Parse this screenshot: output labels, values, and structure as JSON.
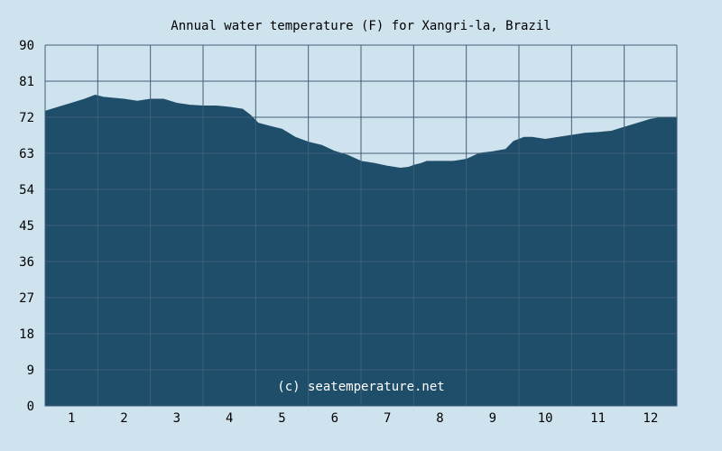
{
  "chart_data": {
    "type": "area",
    "title": "Annual water temperature (F) for Xangri-la, Brazil",
    "xlabel": "",
    "ylabel": "",
    "x_tick_labels": [
      "1",
      "2",
      "3",
      "4",
      "5",
      "6",
      "7",
      "8",
      "9",
      "10",
      "11",
      "12"
    ],
    "y_tick_labels": [
      "0",
      "9",
      "18",
      "27",
      "36",
      "45",
      "54",
      "63",
      "72",
      "81",
      "90"
    ],
    "xlim": [
      0.5,
      12.5
    ],
    "ylim": [
      0,
      90
    ],
    "grid": true,
    "watermark": "(c) seatemperature.net",
    "colors": {
      "background": "#cfe3ee",
      "fill": "#1e4e6a",
      "grid": "#3f5f78",
      "text": "#000000",
      "watermark": "#ffffff"
    },
    "series": [
      {
        "x": [
          0.5,
          0.75,
          1.0,
          1.25,
          1.45,
          1.6,
          1.75,
          2.0,
          2.25,
          2.5,
          2.75,
          3.0,
          3.25,
          3.5,
          3.75,
          4.0,
          4.25,
          4.4,
          4.55,
          4.75,
          5.0,
          5.25,
          5.5,
          5.75,
          6.0,
          6.25,
          6.5,
          6.75,
          7.0,
          7.25,
          7.4,
          7.5,
          7.65,
          7.75,
          8.0,
          8.25,
          8.5,
          8.75,
          9.0,
          9.25,
          9.4,
          9.6,
          9.75,
          10.0,
          10.25,
          10.5,
          10.75,
          11.0,
          11.25,
          11.5,
          11.75,
          12.0,
          12.25,
          12.5
        ],
        "y": [
          73.5,
          74.5,
          75.5,
          76.5,
          77.5,
          77.0,
          76.8,
          76.5,
          76.0,
          76.5,
          76.5,
          75.5,
          75.0,
          74.8,
          74.8,
          74.5,
          74.0,
          72.5,
          70.5,
          69.8,
          69.0,
          67.0,
          65.8,
          65.0,
          63.5,
          62.5,
          61.0,
          60.5,
          59.8,
          59.3,
          59.5,
          60.0,
          60.5,
          61.0,
          61.0,
          61.0,
          61.5,
          63.0,
          63.4,
          64.0,
          66.0,
          67.0,
          67.0,
          66.5,
          67.0,
          67.5,
          68.0,
          68.2,
          68.5,
          69.5,
          70.5,
          71.5,
          72.0,
          72.0
        ]
      }
    ]
  }
}
